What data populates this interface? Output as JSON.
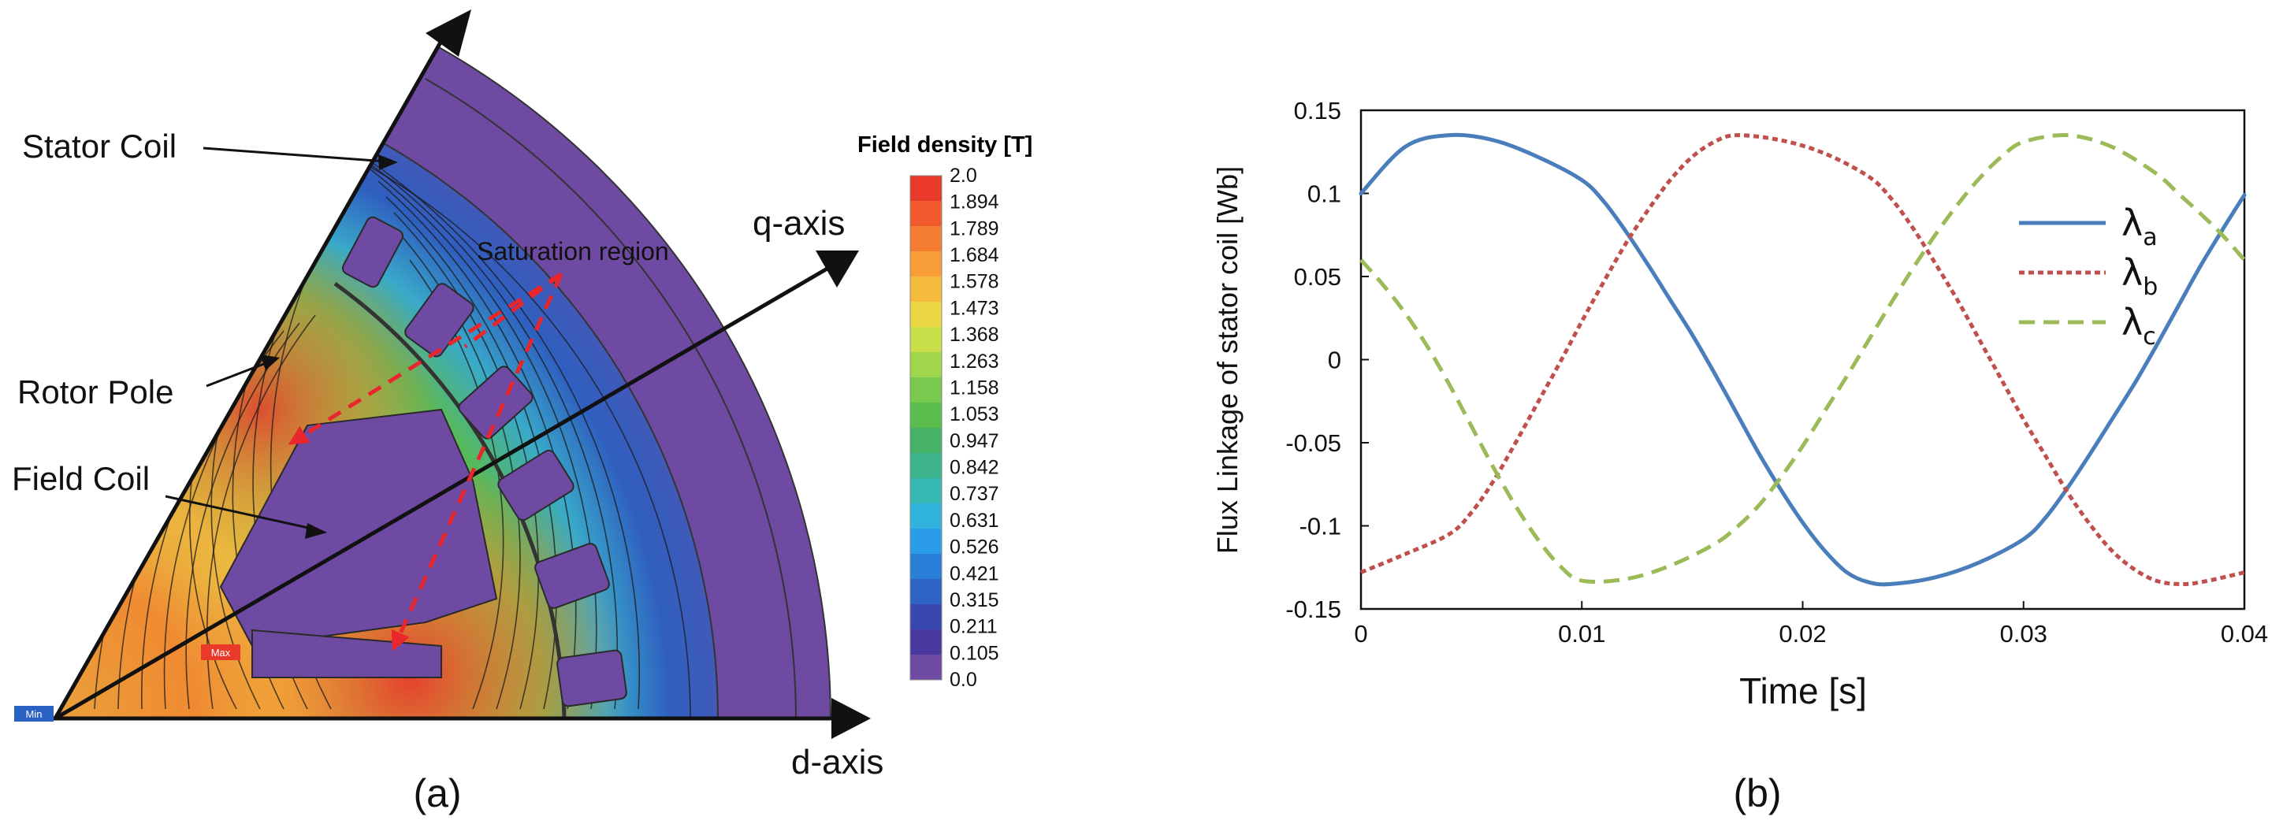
{
  "figure": {
    "panel_a": {
      "caption": "(a)",
      "labels": {
        "stator_coil": "Stator Coil",
        "rotor_pole": "Rotor Pole",
        "field_coil": "Field Coil",
        "saturation": "Saturation region",
        "q_axis": "q-axis",
        "d_axis": "d-axis",
        "min_tag": "Min",
        "max_tag": "Max"
      },
      "colorbar": {
        "title": "Field density [T]",
        "ticks": [
          "2.0",
          "1.894",
          "1.789",
          "1.684",
          "1.578",
          "1.473",
          "1.368",
          "1.263",
          "1.158",
          "1.053",
          "0.947",
          "0.842",
          "0.737",
          "0.631",
          "0.526",
          "0.421",
          "0.315",
          "0.211",
          "0.105",
          "0.0"
        ],
        "colors": [
          "#e8392b",
          "#f05a2c",
          "#f47d32",
          "#f69d38",
          "#f5bb3e",
          "#eed745",
          "#c9e04a",
          "#9fd64c",
          "#78c94d",
          "#5bbd4e",
          "#45b267",
          "#3db48d",
          "#35b7b4",
          "#2fb3dc",
          "#2a9ce8",
          "#2a7fd8",
          "#2e62c4",
          "#3848b0",
          "#4a3aa0",
          "#6f4aa3"
        ]
      }
    },
    "panel_b": {
      "caption": "(b)"
    }
  },
  "chart_data": {
    "type": "line",
    "title": "",
    "xlabel": "Time [s]",
    "ylabel": "Flux Linkage of stator coil [Wb]",
    "xlim": [
      0,
      0.04
    ],
    "ylim": [
      -0.15,
      0.15
    ],
    "xticks": [
      0,
      0.01,
      0.02,
      0.03,
      0.04
    ],
    "xtick_labels": [
      "0",
      "0.01",
      "0.02",
      "0.03",
      "0.04"
    ],
    "yticks": [
      0.15,
      0.1,
      0.05,
      0,
      -0.05,
      -0.1,
      -0.15
    ],
    "ytick_labels": [
      "0.15",
      "0.1",
      "0.05",
      "0",
      "-0.05",
      "-0.1",
      "-0.15"
    ],
    "grid": false,
    "legend_position": "top-right",
    "series": [
      {
        "name": "λ",
        "subscript": "a",
        "color": "#4a7ebb",
        "style": "solid",
        "x": [
          0,
          0.002,
          0.004,
          0.006,
          0.008,
          0.01,
          0.011,
          0.012,
          0.013,
          0.014,
          0.015,
          0.016,
          0.017,
          0.018,
          0.019,
          0.02,
          0.021,
          0.022,
          0.023,
          0.024,
          0.026,
          0.028,
          0.03,
          0.031,
          0.032,
          0.033,
          0.034,
          0.035,
          0.036,
          0.037,
          0.038,
          0.039,
          0.04
        ],
        "values": [
          0.1,
          0.128,
          0.135,
          0.132,
          0.122,
          0.108,
          0.095,
          0.077,
          0.057,
          0.036,
          0.015,
          -0.008,
          -0.032,
          -0.056,
          -0.078,
          -0.098,
          -0.115,
          -0.128,
          -0.134,
          -0.135,
          -0.131,
          -0.122,
          -0.108,
          -0.095,
          -0.077,
          -0.057,
          -0.036,
          -0.015,
          0.008,
          0.032,
          0.056,
          0.078,
          0.099
        ]
      },
      {
        "name": "λ",
        "subscript": "b",
        "color": "#c0504d",
        "style": "dotted",
        "x": [
          0,
          0.002,
          0.004,
          0.005,
          0.006,
          0.007,
          0.008,
          0.009,
          0.01,
          0.011,
          0.012,
          0.013,
          0.014,
          0.015,
          0.016,
          0.017,
          0.019,
          0.021,
          0.023,
          0.024,
          0.025,
          0.026,
          0.027,
          0.028,
          0.029,
          0.03,
          0.031,
          0.032,
          0.033,
          0.034,
          0.035,
          0.036,
          0.037,
          0.038,
          0.04
        ],
        "values": [
          -0.128,
          -0.117,
          -0.105,
          -0.092,
          -0.073,
          -0.05,
          -0.026,
          -0.002,
          0.023,
          0.047,
          0.07,
          0.09,
          0.108,
          0.122,
          0.131,
          0.135,
          0.132,
          0.124,
          0.11,
          0.097,
          0.079,
          0.058,
          0.036,
          0.012,
          -0.012,
          -0.036,
          -0.058,
          -0.08,
          -0.099,
          -0.115,
          -0.126,
          -0.133,
          -0.135,
          -0.134,
          -0.128
        ]
      },
      {
        "name": "λ",
        "subscript": "c",
        "color": "#9bbb59",
        "style": "dashed",
        "x": [
          0,
          0.001,
          0.002,
          0.003,
          0.004,
          0.005,
          0.006,
          0.007,
          0.008,
          0.009,
          0.01,
          0.012,
          0.014,
          0.016,
          0.017,
          0.018,
          0.019,
          0.02,
          0.021,
          0.022,
          0.023,
          0.024,
          0.025,
          0.026,
          0.027,
          0.028,
          0.029,
          0.03,
          0.032,
          0.034,
          0.036,
          0.037,
          0.038,
          0.039,
          0.04
        ],
        "values": [
          0.06,
          0.045,
          0.028,
          0.008,
          -0.015,
          -0.04,
          -0.065,
          -0.088,
          -0.108,
          -0.124,
          -0.133,
          -0.132,
          -0.124,
          -0.111,
          -0.101,
          -0.088,
          -0.071,
          -0.052,
          -0.031,
          -0.01,
          0.012,
          0.034,
          0.055,
          0.075,
          0.093,
          0.109,
          0.122,
          0.131,
          0.135,
          0.128,
          0.112,
          0.1,
          0.088,
          0.075,
          0.06
        ]
      }
    ]
  }
}
